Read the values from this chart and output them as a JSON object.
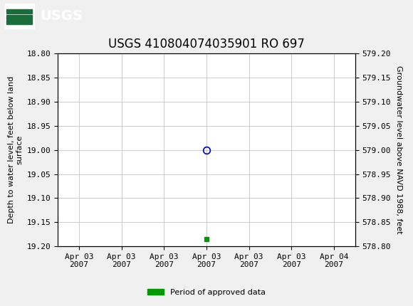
{
  "title": "USGS 410804074035901 RO 697",
  "ylabel_left": "Depth to water level, feet below land\nsurface",
  "ylabel_right": "Groundwater level above NAVD 1988, feet",
  "ylim_left": [
    18.8,
    19.2
  ],
  "ylim_right": [
    578.8,
    579.2
  ],
  "yticks_left": [
    18.8,
    18.85,
    18.9,
    18.95,
    19.0,
    19.05,
    19.1,
    19.15,
    19.2
  ],
  "yticks_right": [
    579.2,
    579.15,
    579.1,
    579.05,
    579.0,
    578.95,
    578.9,
    578.85,
    578.8
  ],
  "data_point_x": 3.0,
  "data_point_y": 19.0,
  "green_marker_x": 3.0,
  "green_marker_y": 19.185,
  "x_tick_labels": [
    "Apr 03\n2007",
    "Apr 03\n2007",
    "Apr 03\n2007",
    "Apr 03\n2007",
    "Apr 03\n2007",
    "Apr 03\n2007",
    "Apr 04\n2007"
  ],
  "x_tick_positions": [
    0,
    1,
    2,
    3,
    4,
    5,
    6
  ],
  "xlim": [
    -0.5,
    6.5
  ],
  "grid_color": "#cccccc",
  "bg_color": "#f0f0f0",
  "plot_bg_color": "#ffffff",
  "usgs_bar_color": "#1a6e3c",
  "title_fontsize": 12,
  "axis_fontsize": 8,
  "tick_fontsize": 8,
  "legend_label": "Period of approved data",
  "legend_color": "#009900",
  "blue_circle_color": "#0000cc",
  "green_square_color": "#009900"
}
